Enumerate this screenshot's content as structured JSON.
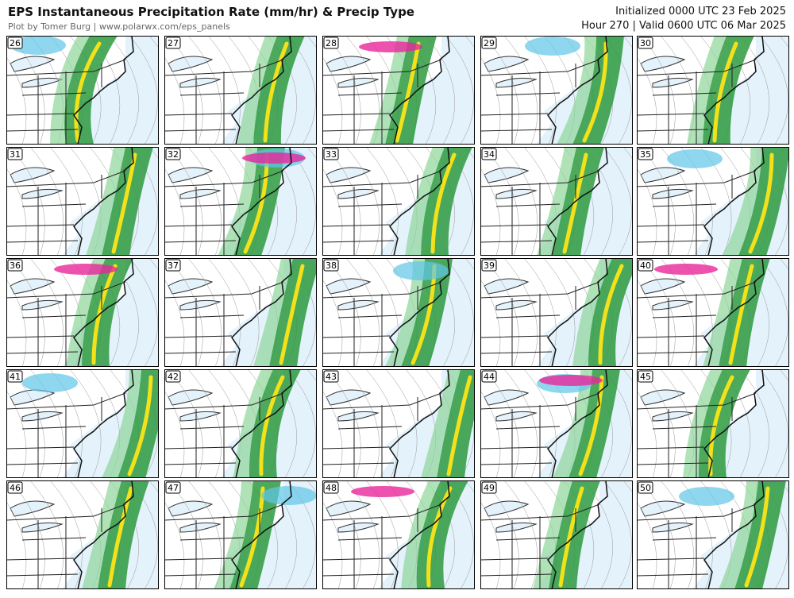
{
  "header": {
    "title": "EPS Instantaneous Precipitation Rate (mm/hr) & Precip Type",
    "credit": "Plot by Tomer Burg | www.polarwx.com/eps_panels",
    "initialized": "Initialized 0000 UTC 23 Feb 2025",
    "valid": "Hour 270 | Valid 0600 UTC 06 Mar 2025"
  },
  "panels": [
    {
      "label": "26"
    },
    {
      "label": "27"
    },
    {
      "label": "28"
    },
    {
      "label": "29"
    },
    {
      "label": "30"
    },
    {
      "label": "31"
    },
    {
      "label": "32"
    },
    {
      "label": "33"
    },
    {
      "label": "34"
    },
    {
      "label": "35"
    },
    {
      "label": "36"
    },
    {
      "label": "37"
    },
    {
      "label": "38"
    },
    {
      "label": "39"
    },
    {
      "label": "40"
    },
    {
      "label": "41"
    },
    {
      "label": "42"
    },
    {
      "label": "43"
    },
    {
      "label": "44"
    },
    {
      "label": "45"
    },
    {
      "label": "46"
    },
    {
      "label": "47"
    },
    {
      "label": "48"
    },
    {
      "label": "49"
    },
    {
      "label": "50"
    }
  ]
}
